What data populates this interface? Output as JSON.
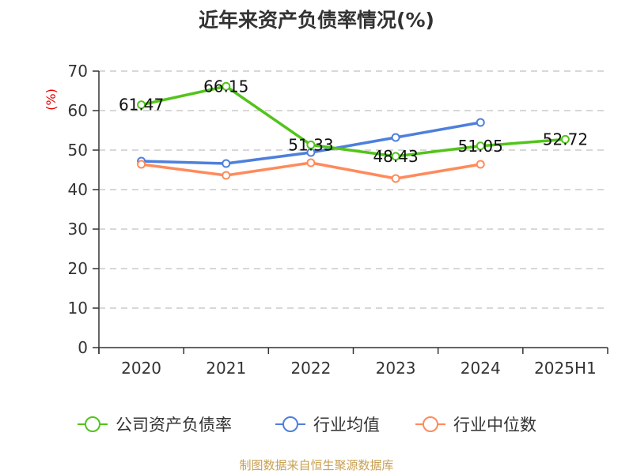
{
  "header": {
    "title": "近年来资产负债率情况(%)"
  },
  "footer": {
    "source": "制图数据来自恒生聚源数据库"
  },
  "chart_data": {
    "type": "line",
    "title": "近年来资产负债率情况(%)",
    "xlabel": "",
    "ylabel": "(%)",
    "ylim": [
      0,
      70
    ],
    "yticks": [
      0,
      10,
      20,
      30,
      40,
      50,
      60,
      70
    ],
    "grid": true,
    "legend_position": "bottom",
    "categories": [
      "2020",
      "2021",
      "2022",
      "2023",
      "2024",
      "2025H1"
    ],
    "series": [
      {
        "name": "公司资产负债率",
        "color": "#52c41a",
        "values": [
          61.47,
          66.15,
          51.33,
          48.43,
          51.05,
          52.72
        ],
        "labels": [
          "61.47",
          "66.15",
          "51.33",
          "48.43",
          "51.05",
          "52.72"
        ]
      },
      {
        "name": "行业均值",
        "color": "#4e7fdc",
        "values": [
          47.2,
          46.6,
          49.4,
          53.2,
          57.0,
          null
        ]
      },
      {
        "name": "行业中位数",
        "color": "#ff8a5b",
        "values": [
          46.4,
          43.6,
          46.8,
          42.8,
          46.4,
          null
        ]
      }
    ]
  },
  "colors": {
    "axis": "#333333",
    "grid": "#cccccc",
    "ylabel": "#e60000",
    "footer": "#c8a052"
  }
}
